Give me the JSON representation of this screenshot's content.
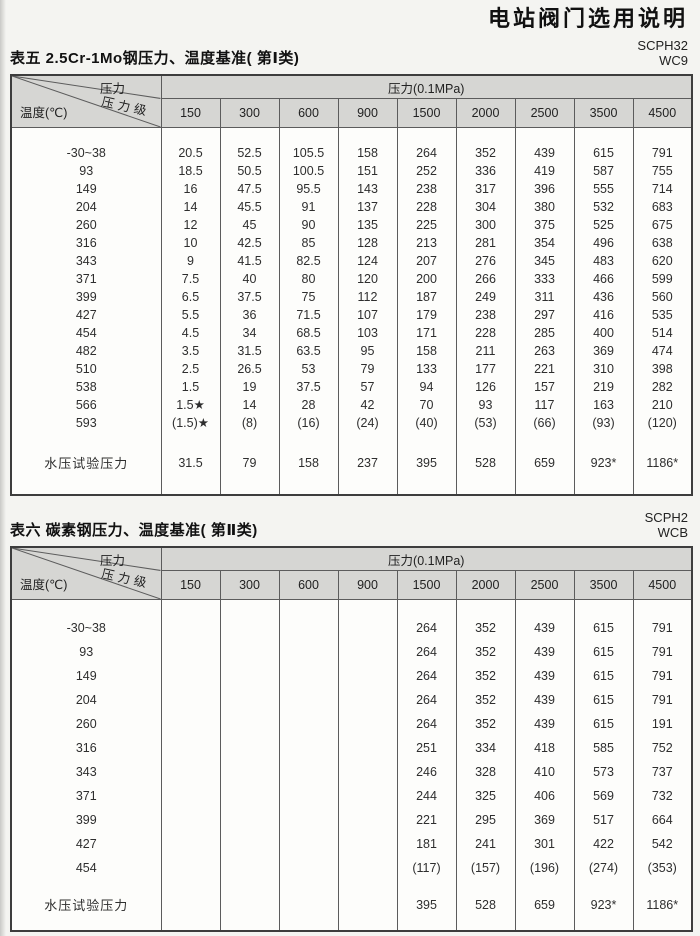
{
  "doc": {
    "title": "电站阀门选用说明"
  },
  "colors": {
    "header_bg": "#d6d6d3",
    "page_bg": "#f4f4f1",
    "line": "#5c5c5c"
  },
  "table5": {
    "caption": "表五 2.5Cr-1Mo钢压力、温度基准( 第Ⅰ类)",
    "material_grades": [
      "SCPH32",
      "WC9"
    ],
    "header": {
      "pressure_label": "压力",
      "pressure_class_label": "压力级",
      "temperature_label": "温度(℃)",
      "unit": "压力(0.1MPa)",
      "classes": [
        "150",
        "300",
        "600",
        "900",
        "1500",
        "2000",
        "2500",
        "3500",
        "4500"
      ]
    },
    "rows": [
      {
        "temp": "-30~38",
        "values": [
          "20.5",
          "52.5",
          "105.5",
          "158",
          "264",
          "352",
          "439",
          "615",
          "791"
        ]
      },
      {
        "temp": "93",
        "values": [
          "18.5",
          "50.5",
          "100.5",
          "151",
          "252",
          "336",
          "419",
          "587",
          "755"
        ]
      },
      {
        "temp": "149",
        "values": [
          "16",
          "47.5",
          "95.5",
          "143",
          "238",
          "317",
          "396",
          "555",
          "714"
        ]
      },
      {
        "temp": "204",
        "values": [
          "14",
          "45.5",
          "91",
          "137",
          "228",
          "304",
          "380",
          "532",
          "683"
        ]
      },
      {
        "temp": "260",
        "values": [
          "12",
          "45",
          "90",
          "135",
          "225",
          "300",
          "375",
          "525",
          "675"
        ]
      },
      {
        "temp": "316",
        "values": [
          "10",
          "42.5",
          "85",
          "128",
          "213",
          "281",
          "354",
          "496",
          "638"
        ]
      },
      {
        "temp": "343",
        "values": [
          "9",
          "41.5",
          "82.5",
          "124",
          "207",
          "276",
          "345",
          "483",
          "620"
        ]
      },
      {
        "temp": "371",
        "values": [
          "7.5",
          "40",
          "80",
          "120",
          "200",
          "266",
          "333",
          "466",
          "599"
        ]
      },
      {
        "temp": "399",
        "values": [
          "6.5",
          "37.5",
          "75",
          "112",
          "187",
          "249",
          "311",
          "436",
          "560"
        ]
      },
      {
        "temp": "427",
        "values": [
          "5.5",
          "36",
          "71.5",
          "107",
          "179",
          "238",
          "297",
          "416",
          "535"
        ]
      },
      {
        "temp": "454",
        "values": [
          "4.5",
          "34",
          "68.5",
          "103",
          "171",
          "228",
          "285",
          "400",
          "514"
        ]
      },
      {
        "temp": "482",
        "values": [
          "3.5",
          "31.5",
          "63.5",
          "95",
          "158",
          "211",
          "263",
          "369",
          "474"
        ]
      },
      {
        "temp": "510",
        "values": [
          "2.5",
          "26.5",
          "53",
          "79",
          "133",
          "177",
          "221",
          "310",
          "398"
        ]
      },
      {
        "temp": "538",
        "values": [
          "1.5",
          "19",
          "37.5",
          "57",
          "94",
          "126",
          "157",
          "219",
          "282"
        ]
      },
      {
        "temp": "566",
        "values": [
          "1.5★",
          "14",
          "28",
          "42",
          "70",
          "93",
          "117",
          "163",
          "210"
        ]
      },
      {
        "temp": "593",
        "values": [
          "(1.5)★",
          "(8)",
          "(16)",
          "(24)",
          "(40)",
          "(53)",
          "(66)",
          "(93)",
          "(120)"
        ]
      }
    ],
    "test_row": {
      "label": "水压试验压力",
      "values": [
        "31.5",
        "79",
        "158",
        "237",
        "395",
        "528",
        "659",
        "923*",
        "1186*"
      ]
    }
  },
  "table6": {
    "caption": "表六 碳素钢压力、温度基准( 第Ⅱ类)",
    "material_grades": [
      "SCPH2",
      "WCB"
    ],
    "header": {
      "pressure_label": "压力",
      "pressure_class_label": "压力级",
      "temperature_label": "温度(℃)",
      "unit": "压力(0.1MPa)",
      "classes": [
        "150",
        "300",
        "600",
        "900",
        "1500",
        "2000",
        "2500",
        "3500",
        "4500"
      ]
    },
    "rows": [
      {
        "temp": "-30~38",
        "values": [
          "",
          "",
          "",
          "",
          "264",
          "352",
          "439",
          "615",
          "791"
        ]
      },
      {
        "temp": "93",
        "values": [
          "",
          "",
          "",
          "",
          "264",
          "352",
          "439",
          "615",
          "791"
        ]
      },
      {
        "temp": "149",
        "values": [
          "",
          "",
          "",
          "",
          "264",
          "352",
          "439",
          "615",
          "791"
        ]
      },
      {
        "temp": "204",
        "values": [
          "",
          "",
          "",
          "",
          "264",
          "352",
          "439",
          "615",
          "791"
        ]
      },
      {
        "temp": "260",
        "values": [
          "",
          "",
          "",
          "",
          "264",
          "352",
          "439",
          "615",
          "191"
        ]
      },
      {
        "temp": "316",
        "values": [
          "",
          "",
          "",
          "",
          "251",
          "334",
          "418",
          "585",
          "752"
        ]
      },
      {
        "temp": "343",
        "values": [
          "",
          "",
          "",
          "",
          "246",
          "328",
          "410",
          "573",
          "737"
        ]
      },
      {
        "temp": "371",
        "values": [
          "",
          "",
          "",
          "",
          "244",
          "325",
          "406",
          "569",
          "732"
        ]
      },
      {
        "temp": "399",
        "values": [
          "",
          "",
          "",
          "",
          "221",
          "295",
          "369",
          "517",
          "664"
        ]
      },
      {
        "temp": "427",
        "values": [
          "",
          "",
          "",
          "",
          "181",
          "241",
          "301",
          "422",
          "542"
        ]
      },
      {
        "temp": "454",
        "values": [
          "",
          "",
          "",
          "",
          "(117)",
          "(157)",
          "(196)",
          "(274)",
          "(353)"
        ]
      }
    ],
    "test_row": {
      "label": "水压试验压力",
      "values": [
        "",
        "",
        "",
        "",
        "395",
        "528",
        "659",
        "923*",
        "1186*"
      ]
    }
  }
}
